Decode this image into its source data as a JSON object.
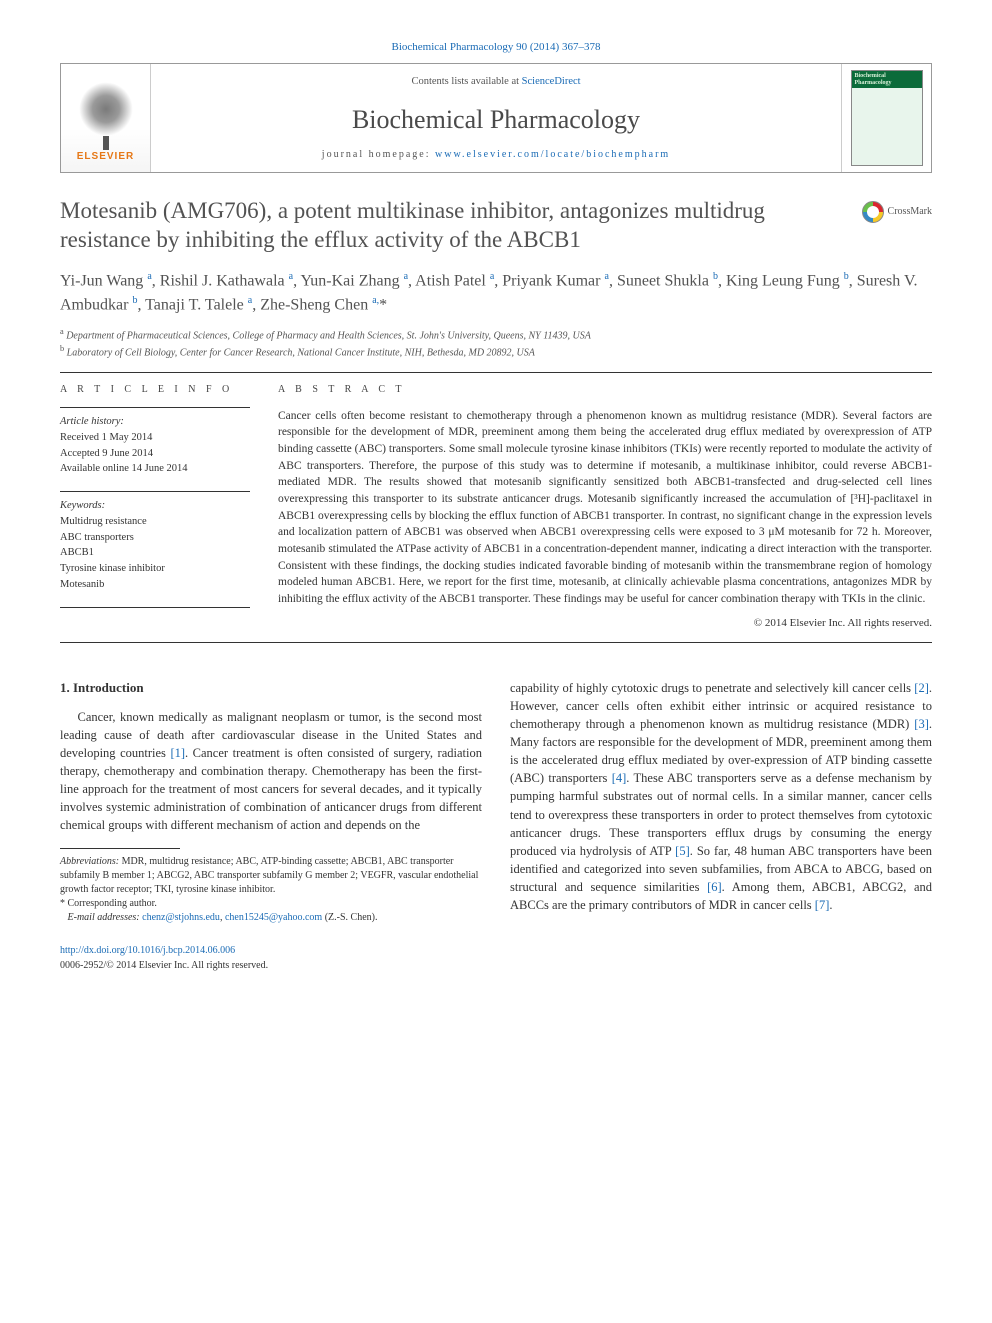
{
  "journal_ref": "Biochemical Pharmacology 90 (2014) 367–378",
  "header": {
    "contents_prefix": "Contents lists available at ",
    "contents_link": "ScienceDirect",
    "journal_name": "Biochemical Pharmacology",
    "homepage_prefix": "journal homepage: ",
    "homepage_link": "www.elsevier.com/locate/biochempharm",
    "publisher": "ELSEVIER",
    "cover_line1": "Biochemical",
    "cover_line2": "Pharmacology"
  },
  "crossmark_label": "CrossMark",
  "title": "Motesanib (AMG706), a potent multikinase inhibitor, antagonizes multidrug resistance by inhibiting the efflux activity of the ABCB1",
  "authors_html": "Yi-Jun Wang <sup>a</sup>, Rishil J. Kathawala <sup>a</sup>, Yun-Kai Zhang <sup>a</sup>, Atish Patel <sup>a</sup>, Priyank Kumar <sup>a</sup>, Suneet Shukla <sup>b</sup>, King Leung Fung <sup>b</sup>, Suresh V. Ambudkar <sup>b</sup>, Tanaji T. Talele <sup>a</sup>, Zhe-Sheng Chen <sup>a,</sup>*",
  "affiliations": {
    "a": "Department of Pharmaceutical Sciences, College of Pharmacy and Health Sciences, St. John's University, Queens, NY 11439, USA",
    "b": "Laboratory of Cell Biology, Center for Cancer Research, National Cancer Institute, NIH, Bethesda, MD 20892, USA"
  },
  "info": {
    "section_label": "A R T I C L E   I N F O",
    "history_label": "Article history:",
    "history": [
      "Received 1 May 2014",
      "Accepted 9 June 2014",
      "Available online 14 June 2014"
    ],
    "keywords_label": "Keywords:",
    "keywords": [
      "Multidrug resistance",
      "ABC transporters",
      "ABCB1",
      "Tyrosine kinase inhibitor",
      "Motesanib"
    ]
  },
  "abstract": {
    "section_label": "A B S T R A C T",
    "text": "Cancer cells often become resistant to chemotherapy through a phenomenon known as multidrug resistance (MDR). Several factors are responsible for the development of MDR, preeminent among them being the accelerated drug efflux mediated by overexpression of ATP binding cassette (ABC) transporters. Some small molecule tyrosine kinase inhibitors (TKIs) were recently reported to modulate the activity of ABC transporters. Therefore, the purpose of this study was to determine if motesanib, a multikinase inhibitor, could reverse ABCB1-mediated MDR. The results showed that motesanib significantly sensitized both ABCB1-transfected and drug-selected cell lines overexpressing this transporter to its substrate anticancer drugs. Motesanib significantly increased the accumulation of [³H]-paclitaxel in ABCB1 overexpressing cells by blocking the efflux function of ABCB1 transporter. In contrast, no significant change in the expression levels and localization pattern of ABCB1 was observed when ABCB1 overexpressing cells were exposed to 3 μM motesanib for 72 h. Moreover, motesanib stimulated the ATPase activity of ABCB1 in a concentration-dependent manner, indicating a direct interaction with the transporter. Consistent with these findings, the docking studies indicated favorable binding of motesanib within the transmembrane region of homology modeled human ABCB1. Here, we report for the first time, motesanib, at clinically achievable plasma concentrations, antagonizes MDR by inhibiting the efflux activity of the ABCB1 transporter. These findings may be useful for cancer combination therapy with TKIs in the clinic.",
    "copyright": "© 2014 Elsevier Inc. All rights reserved."
  },
  "body": {
    "heading": "1. Introduction",
    "para1_a": "Cancer, known medically as malignant neoplasm or tumor, is the second most leading cause of death after cardiovascular disease in the United States and developing countries ",
    "ref1": "[1]",
    "para1_b": ". Cancer treatment is often consisted of surgery, radiation therapy, chemotherapy and combination therapy. Chemotherapy has been the first-line approach for the treatment of most cancers for several decades, and it typically involves systemic administration of combination of anticancer drugs from different chemical groups with different mechanism of action and depends on the",
    "para2_a": "capability of highly cytotoxic drugs to penetrate and selectively kill cancer cells ",
    "ref2": "[2]",
    "para2_b": ". However, cancer cells often exhibit either intrinsic or acquired resistance to chemotherapy through a phenomenon known as multidrug resistance (MDR) ",
    "ref3": "[3]",
    "para2_c": ". Many factors are responsible for the development of MDR, preeminent among them is the accelerated drug efflux mediated by over-expression of ATP binding cassette (ABC) transporters ",
    "ref4": "[4]",
    "para2_d": ". These ABC transporters serve as a defense mechanism by pumping harmful substrates out of normal cells. In a similar manner, cancer cells tend to overexpress these transporters in order to protect themselves from cytotoxic anticancer drugs. These transporters efflux drugs by consuming the energy produced via hydrolysis of ATP ",
    "ref5": "[5]",
    "para2_e": ". So far, 48 human ABC transporters have been identified and categorized into seven subfamilies, from ABCA to ABCG, based on structural and sequence similarities ",
    "ref6": "[6]",
    "para2_f": ". Among them, ABCB1, ABCG2, and ABCCs are the primary contributors of MDR in cancer cells ",
    "ref7": "[7]",
    "para2_g": "."
  },
  "footnotes": {
    "abbrev_label": "Abbreviations:",
    "abbrev_text": " MDR, multidrug resistance; ABC, ATP-binding cassette; ABCB1, ABC transporter subfamily B member 1; ABCG2, ABC transporter subfamily G member 2; VEGFR, vascular endothelial growth factor receptor; TKI, tyrosine kinase inhibitor.",
    "corr": "* Corresponding author.",
    "email_label": "E-mail addresses:",
    "email1": "chenz@stjohns.edu",
    "email2": "chen15245@yahoo.com",
    "email_suffix": " (Z.-S. Chen)."
  },
  "doi": {
    "url": "http://dx.doi.org/10.1016/j.bcp.2014.06.006",
    "issn_line": "0006-2952/© 2014 Elsevier Inc. All rights reserved."
  },
  "colors": {
    "link": "#1a6bb5",
    "text": "#333333",
    "heading": "#525252",
    "elsevier_orange": "#e67817",
    "cover_green": "#0b6b3a"
  }
}
